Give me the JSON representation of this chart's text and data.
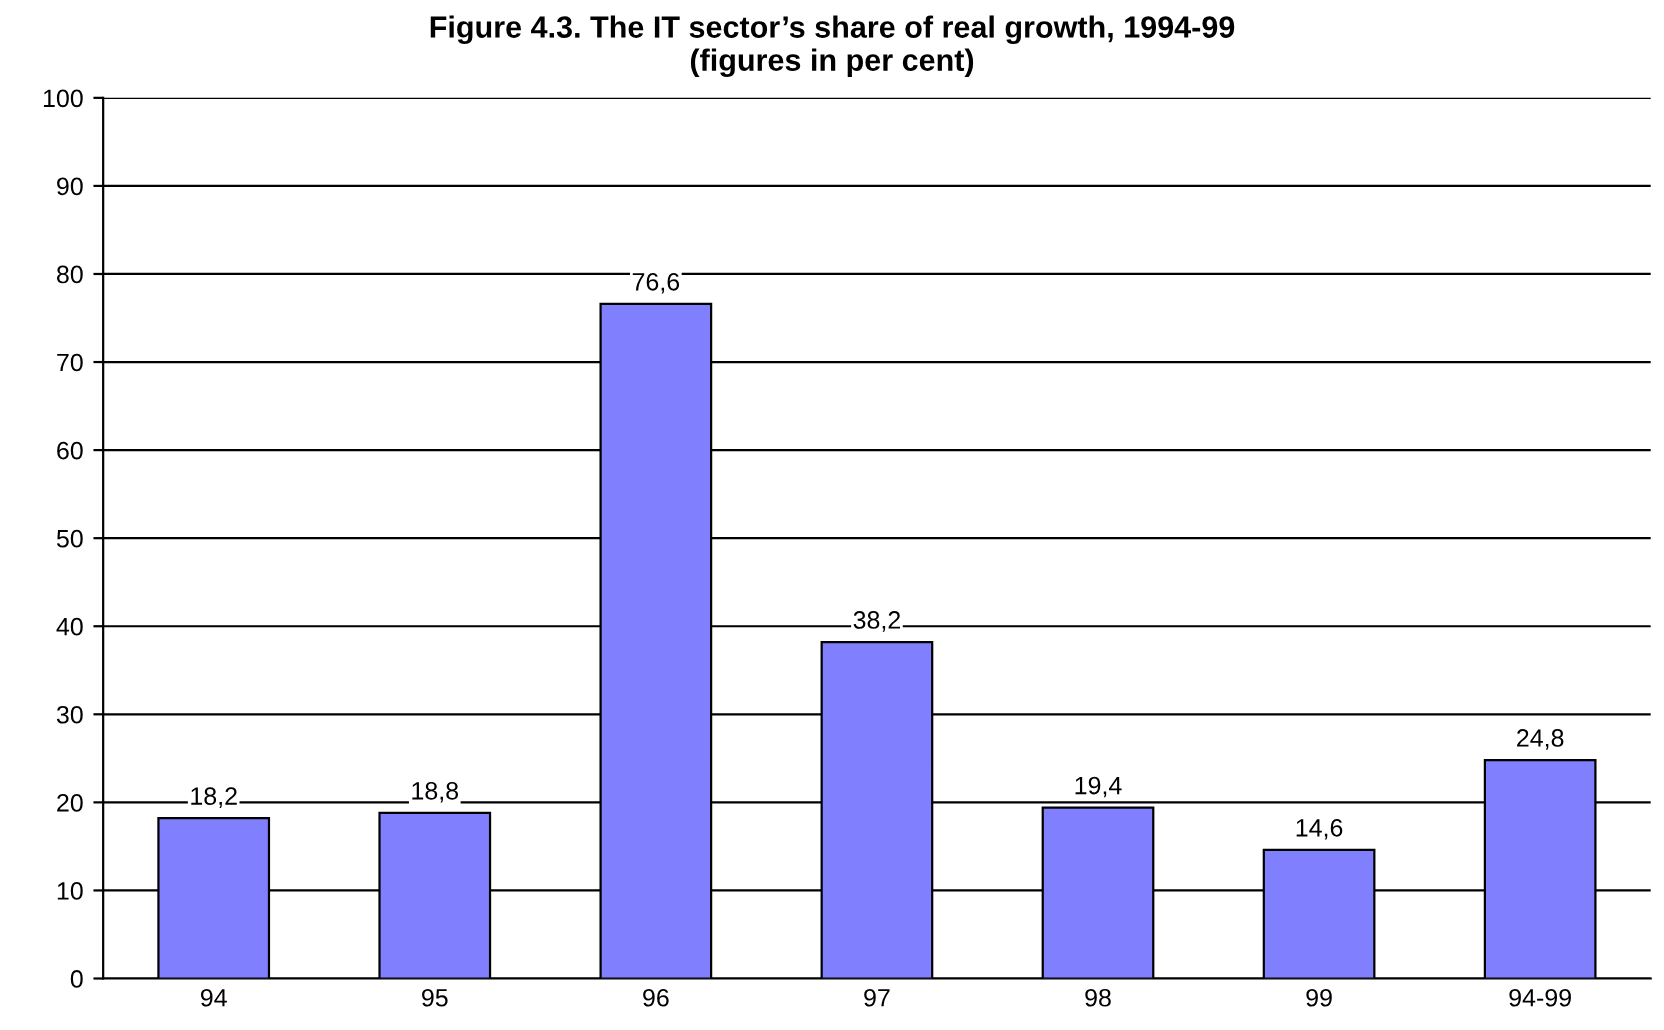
{
  "chart_data": {
    "type": "bar",
    "title": "Figure 4.3. The IT sector’s share of real growth, 1994-99\n(figures in per cent)",
    "categories": [
      "94",
      "95",
      "96",
      "97",
      "98",
      "99",
      "94-99"
    ],
    "values": [
      18.2,
      18.8,
      76.6,
      38.2,
      19.4,
      14.6,
      24.8
    ],
    "value_labels": [
      "18,2",
      "18,8",
      "76,6",
      "38,2",
      "19,4",
      "14,6",
      "24,8"
    ],
    "color": "#8080ff",
    "ylim": [
      0,
      100
    ],
    "yticks": [
      0,
      10,
      20,
      30,
      40,
      50,
      60,
      70,
      80,
      90,
      100
    ],
    "grid": "y"
  }
}
